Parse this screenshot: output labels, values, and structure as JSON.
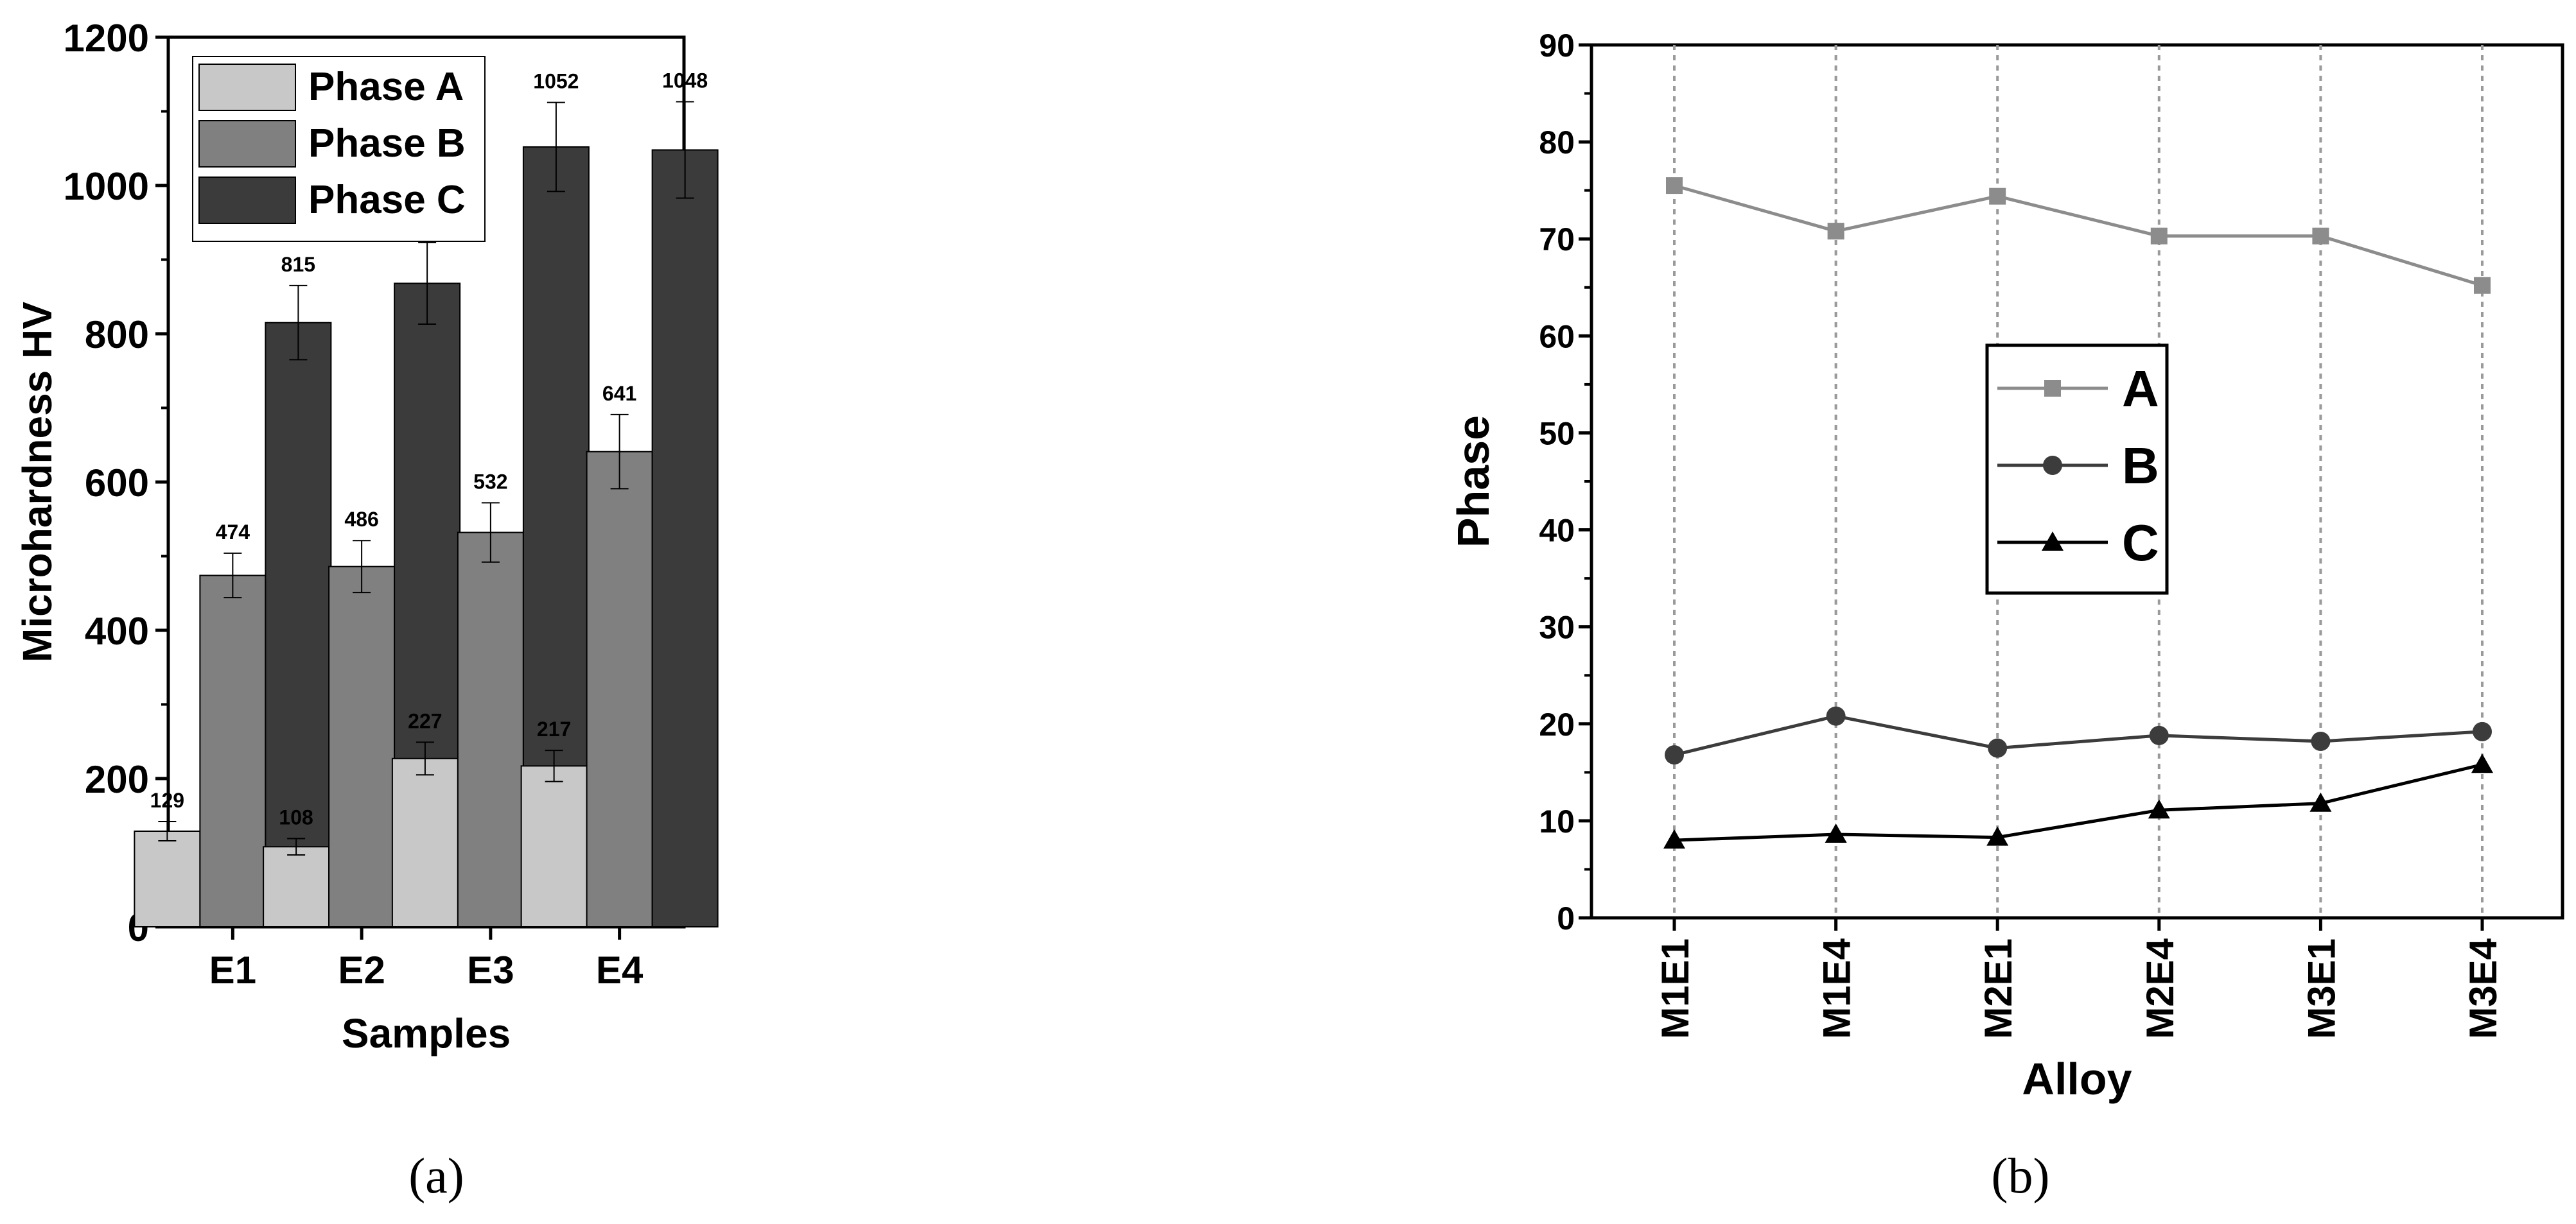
{
  "chart_data": [
    {
      "type": "bar",
      "panel_label": "(a)",
      "xlabel": "Samples",
      "ylabel": "Microhardness HV",
      "ylim": [
        0,
        1200
      ],
      "yticks": [
        "0",
        "200",
        "400",
        "600",
        "800",
        "1000",
        "1200"
      ],
      "categories": [
        "E1",
        "E2",
        "E3",
        "E4"
      ],
      "legend_position": "top-left",
      "series": [
        {
          "name": "Phase A",
          "color": "#c8c8c8",
          "values": [
            129,
            108,
            227,
            217
          ],
          "errors": [
            13,
            11,
            22,
            21
          ]
        },
        {
          "name": "Phase B",
          "color": "#808080",
          "values": [
            474,
            486,
            532,
            641
          ],
          "errors": [
            30,
            35,
            40,
            50
          ]
        },
        {
          "name": "Phase C",
          "color": "#3b3b3b",
          "values": [
            815,
            868,
            1052,
            1048
          ],
          "errors": [
            50,
            55,
            60,
            65
          ]
        }
      ]
    },
    {
      "type": "line",
      "panel_label": "(b)",
      "xlabel": "Alloy",
      "ylabel": "Phase",
      "ylim": [
        0,
        90
      ],
      "yticks": [
        "0",
        "10",
        "20",
        "30",
        "40",
        "50",
        "60",
        "70",
        "80",
        "90"
      ],
      "categories": [
        "M1E1",
        "M1E4",
        "M2E1",
        "M2E4",
        "M3E1",
        "M3E4"
      ],
      "legend_position": "center",
      "series": [
        {
          "name": "A",
          "marker": "square",
          "color": "#8c8c8c",
          "values": [
            75.5,
            70.8,
            74.4,
            70.3,
            70.3,
            65.2
          ]
        },
        {
          "name": "B",
          "marker": "circle",
          "color": "#3c3c3c",
          "values": [
            16.8,
            20.8,
            17.5,
            18.8,
            18.2,
            19.2
          ]
        },
        {
          "name": "C",
          "marker": "triangle",
          "color": "#000000",
          "values": [
            8.0,
            8.6,
            8.3,
            11.1,
            11.8,
            15.8
          ]
        }
      ]
    }
  ]
}
